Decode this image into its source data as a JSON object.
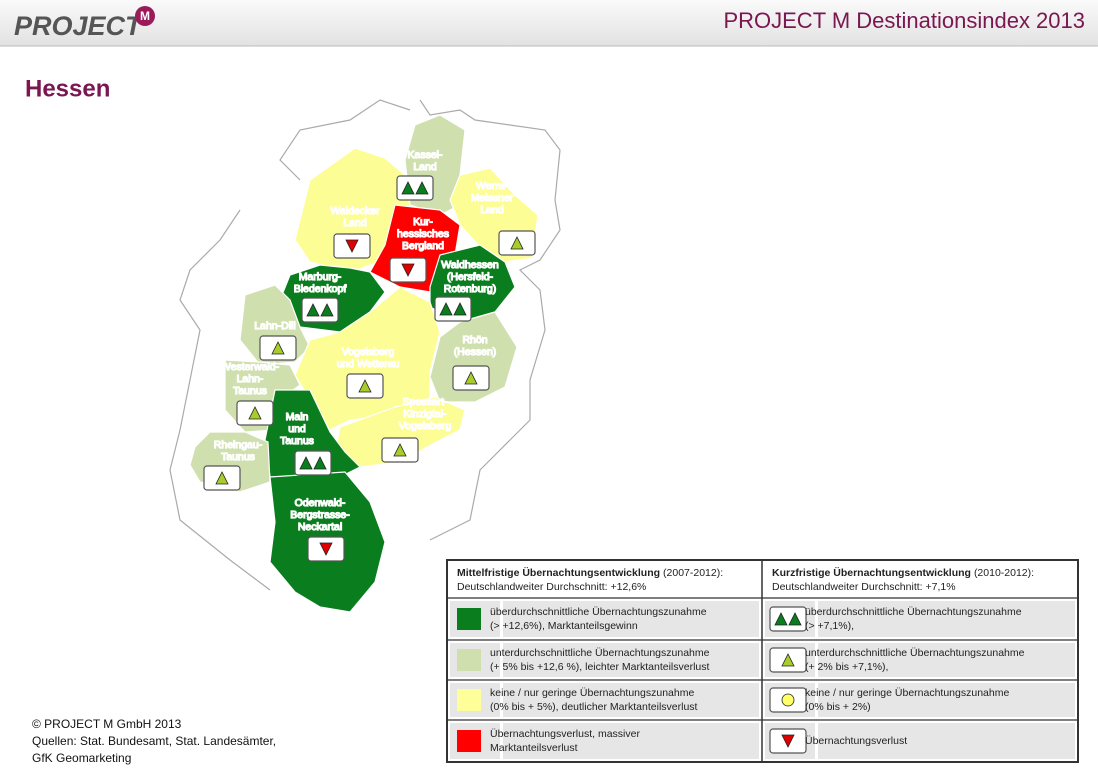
{
  "header": {
    "logo": "PROJECT",
    "logo_badge": "M",
    "title": "PROJECT M Destinationsindex 2013"
  },
  "page_title": "Hessen",
  "regions": [
    {
      "label": [
        "Kassel-",
        "Land"
      ]
    },
    {
      "label": [
        "Waldecker",
        "Land"
      ]
    },
    {
      "label": [
        "Werra-",
        "Meissner",
        "Land"
      ]
    },
    {
      "label": [
        "Kur-",
        "hessisches",
        "Bergland"
      ]
    },
    {
      "label": [
        "Waldhessen",
        "(Hersfeld-",
        "Rotenburg)"
      ]
    },
    {
      "label": [
        "Marburg-",
        "Biedenkopf"
      ]
    },
    {
      "label": [
        "Lahn-Dill"
      ]
    },
    {
      "label": [
        "Vogelsberg",
        "und Wetterau"
      ]
    },
    {
      "label": [
        "Rhön",
        "(Hessen)"
      ]
    },
    {
      "label": [
        "Spessart-",
        "Kinzigtal-",
        "Vogelsberg"
      ]
    },
    {
      "label": [
        "Westerwald-",
        "Lahn-",
        "Taunus"
      ]
    },
    {
      "label": [
        "Main",
        "und",
        "Taunus"
      ]
    },
    {
      "label": [
        "Rheingau-",
        "Taunus"
      ]
    },
    {
      "label": [
        "Odenwald-",
        "Bergstrasse-",
        "Neckartal"
      ]
    }
  ],
  "legend": {
    "columns": [
      {
        "heading": "Mittelfristige Übernachtungsentwicklung",
        "period": "(2007-2012):",
        "average": "Deutschlandweiter Durchschnitt:  +12,6%",
        "rows": [
          [
            "überdurchschnittliche Übernachtungszunahme",
            "(> +12,6%), Marktanteilsgewinn"
          ],
          [
            "unterdurchschnittliche Übernachtungszunahme",
            "(+ 5% bis +12,6 %), leichter Marktanteilsverlust"
          ],
          [
            "keine / nur geringe Übernachtungszunahme",
            "(0% bis + 5%), deutlicher Marktanteilsverlust"
          ],
          [
            "Übernachtungsverlust, massiver",
            "Marktanteilsverlust"
          ]
        ]
      },
      {
        "heading": "Kurzfristige Übernachtungsentwicklung",
        "period": "(2010-2012):",
        "average": "Deutschlandweiter Durchschnitt:  +7,1%",
        "rows": [
          [
            "überdurchschnittliche Übernachtungszunahme",
            "(> +7,1%),"
          ],
          [
            "unterdurchschnittliche Übernachtungszunahme",
            "(+ 2% bis +7,1%),"
          ],
          [
            "keine / nur geringe Übernachtungszunahme",
            "(0%  bis + 2%)"
          ],
          [
            "Übernachtungsverlust"
          ]
        ]
      }
    ]
  },
  "footer": [
    "© PROJECT M GmbH 2013",
    "Quellen: Stat. Bundesamt, Stat. Landesämter,",
    "GfK Geomarketing"
  ]
}
